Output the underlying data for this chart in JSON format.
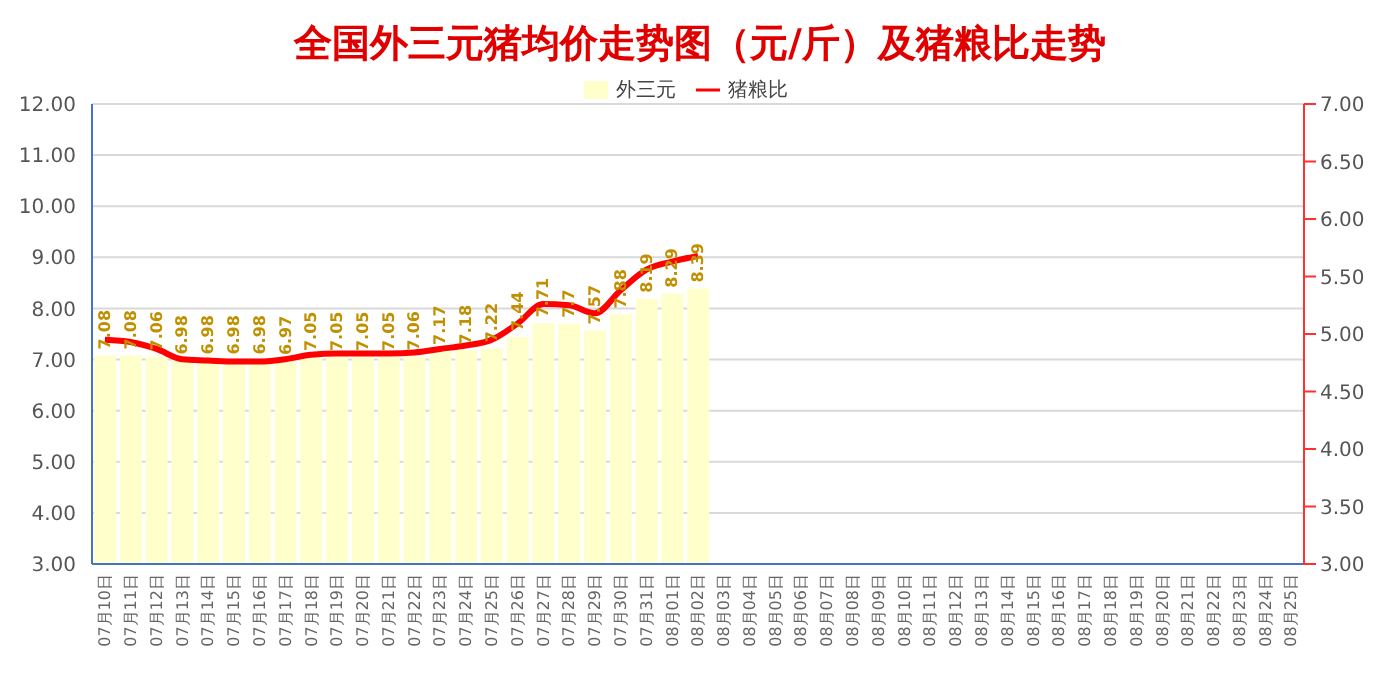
{
  "chart_data": {
    "type": "bar",
    "title": "全国外三元猪均价走势图（元/斤）及猪粮比走势",
    "categories": [
      "07月10日",
      "07月11日",
      "07月12日",
      "07月13日",
      "07月14日",
      "07月15日",
      "07月16日",
      "07月17日",
      "07月18日",
      "07月19日",
      "07月20日",
      "07月21日",
      "07月22日",
      "07月23日",
      "07月24日",
      "07月25日",
      "07月26日",
      "07月27日",
      "07月28日",
      "07月29日",
      "07月30日",
      "07月31日",
      "08月01日",
      "08月02日",
      "08月03日",
      "08月04日",
      "08月05日",
      "08月06日",
      "08月07日",
      "08月08日",
      "08月09日",
      "08月10日",
      "08月11日",
      "08月12日",
      "08月13日",
      "08月14日",
      "08月15日",
      "08月16日",
      "08月17日",
      "08月18日",
      "08月19日",
      "08月20日",
      "08月21日",
      "08月22日",
      "08月23日",
      "08月24日",
      "08月25日"
    ],
    "series": [
      {
        "name": "外三元",
        "color": "#ffffcc",
        "values": [
          7.08,
          7.08,
          7.06,
          6.98,
          6.98,
          6.98,
          6.98,
          6.97,
          7.05,
          7.05,
          7.05,
          7.05,
          7.06,
          7.17,
          7.18,
          7.22,
          7.44,
          7.71,
          7.7,
          7.57,
          7.88,
          8.19,
          8.29,
          8.39,
          null,
          null,
          null,
          null,
          null,
          null,
          null,
          null,
          null,
          null,
          null,
          null,
          null,
          null,
          null,
          null,
          null,
          null,
          null,
          null,
          null,
          null,
          null
        ],
        "value_labels": [
          "7.08",
          "7.08",
          "7.06",
          "6.98",
          "6.98",
          "6.98",
          "6.98",
          "6.97",
          "7.05",
          "7.05",
          "7.05",
          "7.05",
          "7.06",
          "7.17",
          "7.18",
          "7.22",
          "7.44",
          "7.71",
          "7.7",
          "7.57",
          "7.88",
          "8.19",
          "8.29",
          "8.39",
          null,
          null,
          null,
          null,
          null,
          null,
          null,
          null,
          null,
          null,
          null,
          null,
          null,
          null,
          null,
          null,
          null,
          null,
          null,
          null,
          null,
          null,
          null
        ]
      },
      {
        "name": "猪粮比",
        "type": "line",
        "axis": "y2",
        "color": "#ff0000",
        "values": [
          4.95,
          4.93,
          4.87,
          4.78,
          4.77,
          4.76,
          4.76,
          4.78,
          4.82,
          4.83,
          4.83,
          4.83,
          4.84,
          4.87,
          4.9,
          4.95,
          5.09,
          5.26,
          5.25,
          5.18,
          5.38,
          5.56,
          5.63,
          5.68,
          null,
          null,
          null,
          null,
          null,
          null,
          null,
          null,
          null,
          null,
          null,
          null,
          null,
          null,
          null,
          null,
          null,
          null,
          null,
          null,
          null,
          null,
          null
        ]
      }
    ],
    "ylim": [
      3,
      12
    ],
    "yticks": [
      {
        "value": 3,
        "label": "3.00"
      },
      {
        "value": 4,
        "label": "4.00"
      },
      {
        "value": 5,
        "label": "5.00"
      },
      {
        "value": 6,
        "label": "6.00"
      },
      {
        "value": 7,
        "label": "7.00"
      },
      {
        "value": 8,
        "label": "8.00"
      },
      {
        "value": 9,
        "label": "9.00"
      },
      {
        "value": 10,
        "label": "10.00"
      },
      {
        "value": 11,
        "label": "11.00"
      },
      {
        "value": 12,
        "label": "12.00"
      }
    ],
    "y2lim": [
      3,
      7
    ],
    "y2ticks": [
      {
        "value": 3,
        "label": "3.00"
      },
      {
        "value": 3.5,
        "label": "3.50"
      },
      {
        "value": 4,
        "label": "4.00"
      },
      {
        "value": 4.5,
        "label": "4.50"
      },
      {
        "value": 5,
        "label": "5.00"
      },
      {
        "value": 5.5,
        "label": "5.50"
      },
      {
        "value": 6,
        "label": "6.00"
      },
      {
        "value": 6.5,
        "label": "6.50"
      },
      {
        "value": 7,
        "label": "7.00"
      }
    ],
    "grid": "y",
    "legend": "top",
    "marker": "none",
    "line_style": "solid"
  }
}
